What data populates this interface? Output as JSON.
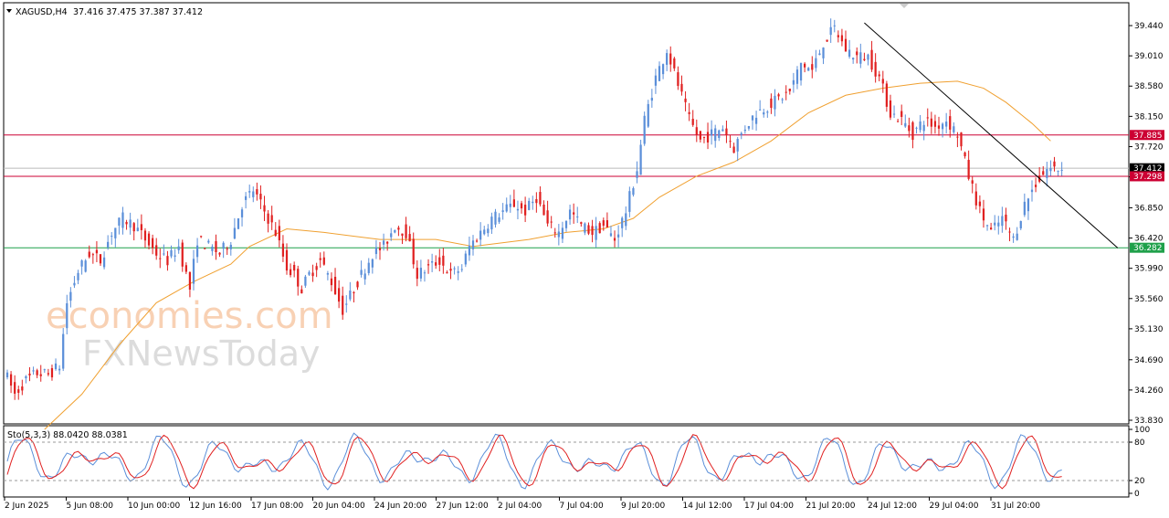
{
  "chart_data": [
    {
      "type": "candlestick",
      "symbol_header": "XAGUSD,H4",
      "ohlc_header": "37.416 37.475 37.387 37.412",
      "y_ticks": [
        "39.440",
        "39.010",
        "38.580",
        "38.150",
        "37.720",
        "37.290",
        "36.850",
        "36.420",
        "35.990",
        "35.560",
        "35.130",
        "34.690",
        "34.260",
        "33.830"
      ],
      "ylim": [
        33.83,
        39.7
      ],
      "x_ticks": [
        "2 Jun 2025",
        "5 Jun 08:00",
        "10 Jun 00:00",
        "12 Jun 16:00",
        "17 Jun 08:00",
        "20 Jun 04:00",
        "24 Jun 20:00",
        "27 Jun 12:00",
        "2 Jul 04:00",
        "7 Jul 04:00",
        "9 Jul 20:00",
        "14 Jul 12:00",
        "17 Jul 04:00",
        "21 Jul 20:00",
        "24 Jul 12:00",
        "29 Jul 04:00",
        "31 Jul 20:00"
      ],
      "price_path": [
        [
          0,
          34.55
        ],
        [
          3,
          34.2
        ],
        [
          6,
          34.4
        ],
        [
          9,
          34.5
        ],
        [
          12,
          34.48
        ],
        [
          15,
          34.6
        ],
        [
          17,
          35.5
        ],
        [
          20,
          35.95
        ],
        [
          23,
          36.2
        ],
        [
          26,
          36.1
        ],
        [
          29,
          36.5
        ],
        [
          32,
          36.7
        ],
        [
          35,
          36.6
        ],
        [
          38,
          36.4
        ],
        [
          41,
          36.2
        ],
        [
          44,
          36.1
        ],
        [
          47,
          36.3
        ],
        [
          50,
          35.7
        ],
        [
          52,
          36.4
        ],
        [
          55,
          36.3
        ],
        [
          58,
          36.2
        ],
        [
          61,
          36.4
        ],
        [
          64,
          36.9
        ],
        [
          67,
          37.1
        ],
        [
          70,
          36.8
        ],
        [
          73,
          36.5
        ],
        [
          76,
          36.0
        ],
        [
          78,
          35.9
        ],
        [
          80,
          35.7
        ],
        [
          82,
          35.9
        ],
        [
          85,
          36.1
        ],
        [
          88,
          35.8
        ],
        [
          91,
          35.4
        ],
        [
          94,
          35.7
        ],
        [
          97,
          36.0
        ],
        [
          99,
          36.2
        ],
        [
          102,
          36.3
        ],
        [
          105,
          36.6
        ],
        [
          108,
          36.5
        ],
        [
          111,
          35.9
        ],
        [
          114,
          36.0
        ],
        [
          117,
          36.1
        ],
        [
          120,
          35.9
        ],
        [
          123,
          36.0
        ],
        [
          125,
          36.3
        ],
        [
          128,
          36.5
        ],
        [
          131,
          36.7
        ],
        [
          134,
          36.8
        ],
        [
          137,
          36.9
        ],
        [
          140,
          36.8
        ],
        [
          143,
          37.0
        ],
        [
          146,
          36.6
        ],
        [
          149,
          36.5
        ],
        [
          152,
          36.8
        ],
        [
          155,
          36.6
        ],
        [
          158,
          36.5
        ],
        [
          161,
          36.6
        ],
        [
          164,
          36.4
        ],
        [
          167,
          36.8
        ],
        [
          170,
          37.4
        ],
        [
          172,
          38.1
        ],
        [
          175,
          38.7
        ],
        [
          178,
          39.1
        ],
        [
          181,
          38.6
        ],
        [
          184,
          38.1
        ],
        [
          187,
          37.8
        ],
        [
          190,
          37.9
        ],
        [
          193,
          38.0
        ],
        [
          196,
          37.7
        ],
        [
          199,
          38.0
        ],
        [
          202,
          38.2
        ],
        [
          205,
          38.3
        ],
        [
          208,
          38.4
        ],
        [
          211,
          38.5
        ],
        [
          214,
          38.9
        ],
        [
          217,
          38.8
        ],
        [
          220,
          39.2
        ],
        [
          223,
          39.4
        ],
        [
          226,
          39.1
        ],
        [
          229,
          39.0
        ],
        [
          232,
          39.0
        ],
        [
          235,
          38.7
        ],
        [
          238,
          38.2
        ],
        [
          241,
          38.1
        ],
        [
          244,
          37.9
        ],
        [
          247,
          38.1
        ],
        [
          250,
          38.0
        ],
        [
          253,
          38.1
        ],
        [
          256,
          37.9
        ],
        [
          259,
          37.3
        ],
        [
          262,
          36.8
        ],
        [
          265,
          36.5
        ],
        [
          268,
          36.7
        ],
        [
          271,
          36.4
        ],
        [
          274,
          36.9
        ],
        [
          277,
          37.2
        ],
        [
          280,
          37.4
        ],
        [
          283,
          37.41
        ]
      ],
      "ma_path": [
        [
          10,
          33.7
        ],
        [
          20,
          34.2
        ],
        [
          30,
          34.9
        ],
        [
          40,
          35.5
        ],
        [
          50,
          35.8
        ],
        [
          60,
          36.05
        ],
        [
          65,
          36.3
        ],
        [
          75,
          36.55
        ],
        [
          85,
          36.5
        ],
        [
          100,
          36.4
        ],
        [
          115,
          36.4
        ],
        [
          125,
          36.3
        ],
        [
          140,
          36.4
        ],
        [
          150,
          36.5
        ],
        [
          160,
          36.55
        ],
        [
          168,
          36.7
        ],
        [
          175,
          37.0
        ],
        [
          185,
          37.3
        ],
        [
          195,
          37.5
        ],
        [
          205,
          37.8
        ],
        [
          215,
          38.2
        ],
        [
          225,
          38.45
        ],
        [
          235,
          38.55
        ],
        [
          245,
          38.62
        ],
        [
          255,
          38.65
        ],
        [
          262,
          38.55
        ],
        [
          268,
          38.35
        ],
        [
          275,
          38.05
        ],
        [
          280,
          37.8
        ]
      ],
      "horizontal_levels": [
        {
          "label": "37.885",
          "value": 37.885,
          "color": "#cc0033"
        },
        {
          "label": "37.412",
          "value": 37.412,
          "color": "#000000"
        },
        {
          "label": "37.298",
          "value": 37.298,
          "color": "#cc0033"
        },
        {
          "label": "36.282",
          "value": 36.282,
          "color": "#1fa04a"
        }
      ],
      "trendline": {
        "from": [
          230,
          39.48
        ],
        "to": [
          298,
          36.28
        ]
      },
      "colors": {
        "up": "#5b8fd9",
        "down": "#e02020",
        "ma": "#f0a030"
      }
    },
    {
      "type": "line",
      "indicator_header": "Sto(5,3,3) 88.0420 88.0381",
      "y_ticks": [
        "100",
        "80",
        "20",
        "0"
      ],
      "ylim": [
        0,
        100
      ],
      "levels": [
        80,
        20
      ],
      "colors": {
        "main": "#5b8fd9",
        "signal": "#e02020"
      }
    }
  ],
  "watermark": {
    "line1": "economies.com",
    "line2": "FXNewsToday"
  }
}
